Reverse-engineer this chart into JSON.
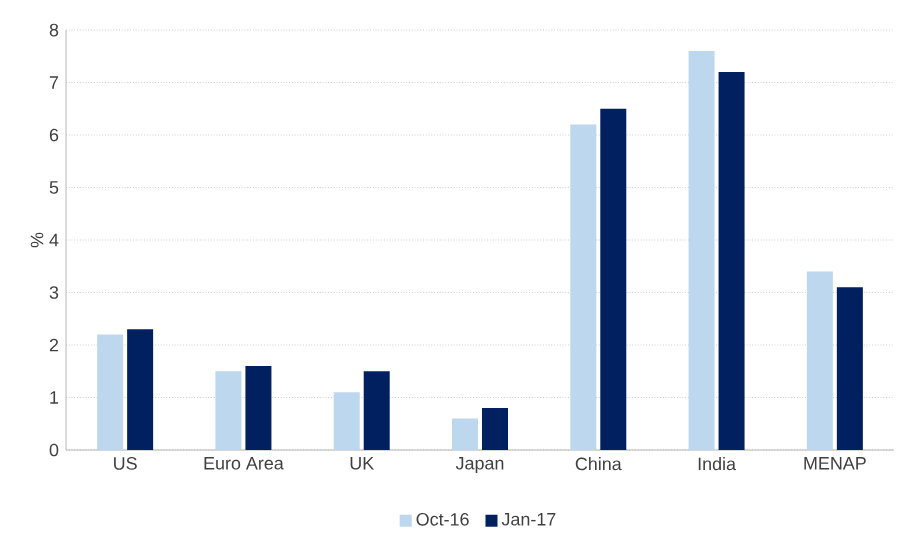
{
  "chart_data": {
    "type": "bar",
    "ylabel": "%",
    "categories": [
      "US",
      "Euro Area",
      "UK",
      "Japan",
      "China",
      "India",
      "MENAP"
    ],
    "series": [
      {
        "name": "Oct-16",
        "color": "#bdd7ee",
        "values": [
          2.2,
          1.5,
          1.1,
          0.6,
          6.2,
          7.6,
          3.4
        ]
      },
      {
        "name": "Jan-17",
        "color": "#002060",
        "values": [
          2.3,
          1.6,
          1.5,
          0.8,
          6.5,
          7.2,
          3.1
        ]
      }
    ],
    "ylim": [
      0,
      8
    ],
    "yticks": [
      0,
      1,
      2,
      3,
      4,
      5,
      6,
      7,
      8
    ],
    "grid": "y",
    "legend": "bottom"
  }
}
